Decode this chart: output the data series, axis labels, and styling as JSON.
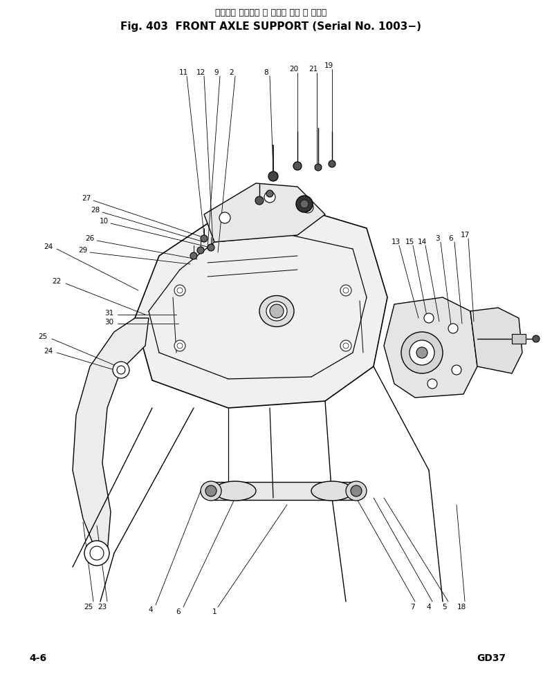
{
  "title_jp": "フロント アクスル サ ポート （適 用 号。機",
  "title_en": "Fig. 403  FRONT AXLE SUPPORT (Serial No. 1003−)",
  "page_label": "4-6",
  "model_label": "GD37",
  "bg_color": "#ffffff",
  "line_color": "#000000",
  "title_fontsize": 11,
  "label_fontsize": 7.5,
  "part_numbers_top_left": [
    "11",
    "12",
    "9",
    "2",
    "8",
    "20",
    "21",
    "19"
  ],
  "part_numbers_mid_left": [
    "27",
    "28",
    "10",
    "26",
    "29",
    "22",
    "24",
    "25",
    "31",
    "30"
  ],
  "part_numbers_bottom_left": [
    "25",
    "23",
    "4",
    "6",
    "1"
  ],
  "part_numbers_right": [
    "13",
    "15",
    "14",
    "3",
    "6",
    "17",
    "7",
    "4",
    "5",
    "18"
  ]
}
